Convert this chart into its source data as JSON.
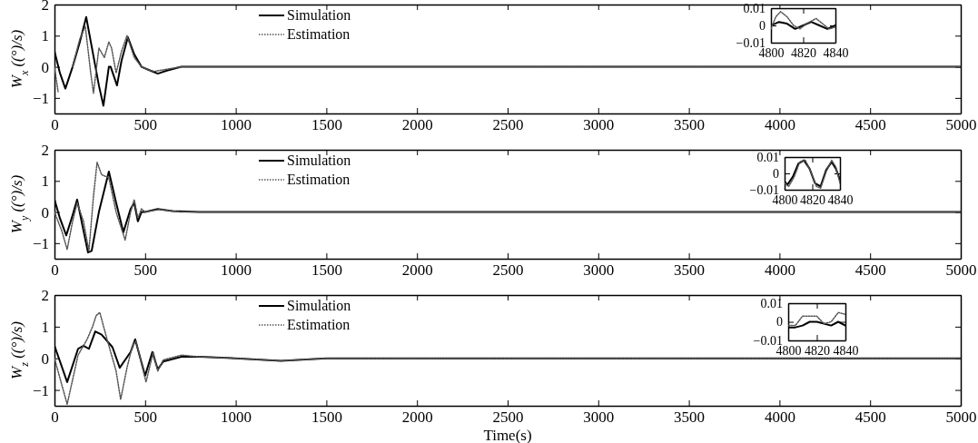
{
  "chart_data": [
    {
      "type": "line",
      "ylabel": "W$_{x}$ ((°)/s)",
      "xlim": [
        0,
        5000
      ],
      "xticks": [
        0,
        500,
        1000,
        1500,
        2000,
        2500,
        3000,
        3500,
        4000,
        4500,
        5000
      ],
      "ylim": [
        -1.5,
        2
      ],
      "yticks": [
        -1,
        0,
        1,
        2
      ],
      "legend": "top left",
      "series": [
        {
          "name": "Simulation",
          "color": "#000000",
          "line_style": "solid",
          "x": [
            0,
            30,
            60,
            100,
            140,
            175,
            210,
            245,
            270,
            300,
            310,
            345,
            370,
            405,
            440,
            480,
            520,
            570,
            620,
            700,
            1000,
            5000
          ],
          "values": [
            0.5,
            -0.2,
            -0.7,
            0,
            0.8,
            1.6,
            0.5,
            -0.6,
            -1.25,
            0,
            0,
            -0.6,
            0.2,
            0.95,
            0.4,
            0,
            -0.1,
            -0.22,
            -0.12,
            0,
            0,
            0
          ]
        },
        {
          "name": "Estimation",
          "color": "#555555",
          "line_style": "dotted",
          "x": [
            0,
            20,
            40,
            70,
            100,
            140,
            170,
            200,
            215,
            245,
            275,
            300,
            315,
            340,
            370,
            400,
            440,
            480,
            520,
            550,
            600,
            700,
            5000
          ],
          "values": [
            0,
            -0.8,
            null,
            null,
            0,
            0.9,
            1.3,
            -0.2,
            -0.85,
            0.6,
            0.3,
            0.8,
            0.6,
            -0.2,
            0.5,
            1.0,
            0.3,
            0,
            -0.1,
            -0.15,
            -0.1,
            0,
            0
          ]
        }
      ]
    },
    {
      "type": "line",
      "xlim": [
        4800,
        4840
      ],
      "xticks": [
        4800,
        4820,
        4840
      ],
      "ylim": [
        -0.01,
        0.01
      ],
      "yticks": [
        -0.01,
        0,
        0.01
      ],
      "series": [
        {
          "color": "#000000",
          "line_style": "solid",
          "x": [
            4800,
            4805,
            4810,
            4815,
            4820,
            4825,
            4830,
            4835,
            4840
          ],
          "values": [
            0,
            0.002,
            0.001,
            -0.002,
            0,
            0.002,
            0,
            -0.002,
            0
          ]
        },
        {
          "color": "#555555",
          "line_style": "dotted",
          "x": [
            4800,
            4803,
            4806,
            4810,
            4814,
            4818,
            4822,
            4828,
            4832,
            4836,
            4840
          ],
          "values": [
            -0.002,
            0.005,
            0.008,
            0.005,
            0,
            -0.002,
            0.001,
            0.004,
            0.001,
            -0.002,
            -0.001
          ]
        }
      ]
    },
    {
      "type": "line",
      "ylabel": "W$_{y}$ ((°)/s)",
      "xlim": [
        0,
        5000
      ],
      "xticks": [
        0,
        500,
        1000,
        1500,
        2000,
        2500,
        3000,
        3500,
        4000,
        4500,
        5000
      ],
      "ylim": [
        -1.5,
        2
      ],
      "yticks": [
        -1,
        0,
        1,
        2
      ],
      "legend": "top left",
      "series": [
        {
          "name": "Simulation",
          "color": "#000000",
          "line_style": "solid",
          "x": [
            0,
            30,
            65,
            100,
            125,
            160,
            185,
            205,
            245,
            300,
            340,
            380,
            420,
            440,
            460,
            480,
            500,
            570,
            650,
            800,
            5000
          ],
          "values": [
            0.4,
            -0.2,
            -0.75,
            -0.1,
            0.4,
            -0.6,
            -1.3,
            -1.25,
            0,
            1.3,
            0.3,
            -0.65,
            0.1,
            0.3,
            -0.3,
            0,
            0,
            0.1,
            0.03,
            0,
            0
          ]
        },
        {
          "name": "Estimation",
          "color": "#555555",
          "line_style": "dotted",
          "x": [
            0,
            40,
            70,
            100,
            125,
            160,
            190,
            215,
            235,
            260,
            300,
            340,
            390,
            420,
            440,
            460,
            480,
            500,
            580,
            700,
            5000
          ],
          "values": [
            0,
            -0.6,
            -1.2,
            -0.3,
            0.3,
            -0.3,
            -1.25,
            0.5,
            1.6,
            1.2,
            1.1,
            0,
            -0.9,
            0,
            0.4,
            -0.2,
            0.1,
            0,
            0.08,
            0,
            0
          ]
        }
      ]
    },
    {
      "type": "line",
      "xlim": [
        4800,
        4840
      ],
      "xticks": [
        4800,
        4820,
        4840
      ],
      "ylim": [
        -0.01,
        0.01
      ],
      "yticks": [
        -0.01,
        0,
        0.01
      ],
      "series": [
        {
          "color": "#000000",
          "line_style": "solid",
          "x": [
            4800,
            4802,
            4806,
            4810,
            4814,
            4818,
            4822,
            4826,
            4830,
            4834,
            4837,
            4840
          ],
          "values": [
            -0.005,
            -0.007,
            -0.002,
            0.006,
            0.008,
            0.003,
            -0.006,
            -0.008,
            0.002,
            0.007,
            0.003,
            -0.004
          ]
        },
        {
          "color": "#555555",
          "line_style": "dotted",
          "x": [
            4800,
            4803,
            4807,
            4811,
            4815,
            4819,
            4823,
            4826,
            4830,
            4834,
            4837,
            4840
          ],
          "values": [
            -0.006,
            -0.008,
            -0.002,
            0.007,
            0.008,
            0.001,
            -0.008,
            -0.009,
            0.001,
            0.008,
            0.004,
            -0.006
          ]
        }
      ]
    },
    {
      "type": "line",
      "ylabel": "W$_{z}$ ((°)/s)",
      "xlabel": "Time(s)",
      "xlim": [
        0,
        5000
      ],
      "xticks": [
        0,
        500,
        1000,
        1500,
        2000,
        2500,
        3000,
        3500,
        4000,
        4500,
        5000
      ],
      "ylim": [
        -1.5,
        2
      ],
      "yticks": [
        -1,
        0,
        1,
        2
      ],
      "legend": "top left",
      "series": [
        {
          "name": "Simulation",
          "color": "#000000",
          "line_style": "solid",
          "x": [
            0,
            70,
            130,
            160,
            190,
            225,
            260,
            320,
            360,
            420,
            445,
            500,
            540,
            570,
            600,
            700,
            800,
            1000,
            1250,
            1500,
            5000
          ],
          "values": [
            0.4,
            -0.75,
            0.3,
            0.4,
            0.3,
            0.85,
            0.75,
            0.35,
            -0.3,
            0.2,
            0.6,
            -0.55,
            0.2,
            -0.35,
            -0.1,
            0.05,
            0.05,
            0,
            -0.08,
            0,
            0
          ]
        },
        {
          "name": "Estimation",
          "color": "#555555",
          "line_style": "dotted",
          "x": [
            0,
            70,
            130,
            180,
            210,
            230,
            250,
            290,
            340,
            365,
            400,
            430,
            450,
            505,
            545,
            570,
            600,
            700,
            800,
            1000,
            1250,
            1500,
            5000
          ],
          "values": [
            0,
            -1.45,
            0.1,
            0.6,
            1.0,
            1.35,
            1.45,
            0.6,
            -0.4,
            -1.3,
            -0.3,
            0.4,
            0.55,
            -0.75,
            0.2,
            -0.4,
            -0.05,
            0.1,
            0.05,
            0,
            -0.08,
            0,
            0
          ]
        }
      ]
    },
    {
      "type": "line",
      "xlim": [
        4800,
        4840
      ],
      "xticks": [
        4800,
        4820,
        4840
      ],
      "ylim": [
        -0.01,
        0.01
      ],
      "yticks": [
        -0.01,
        0,
        0.01
      ],
      "series": [
        {
          "color": "#000000",
          "line_style": "solid",
          "x": [
            4800,
            4805,
            4810,
            4815,
            4820,
            4825,
            4830,
            4835,
            4840
          ],
          "values": [
            -0.003,
            -0.003,
            -0.002,
            0,
            0,
            -0.001,
            -0.002,
            0,
            -0.002
          ]
        },
        {
          "color": "#555555",
          "line_style": "dotted",
          "x": [
            4800,
            4805,
            4810,
            4815,
            4820,
            4825,
            4830,
            4835,
            4840
          ],
          "values": [
            -0.002,
            -0.002,
            0.003,
            0.003,
            0.003,
            -0.001,
            0,
            0.005,
            0.004
          ]
        }
      ]
    }
  ]
}
